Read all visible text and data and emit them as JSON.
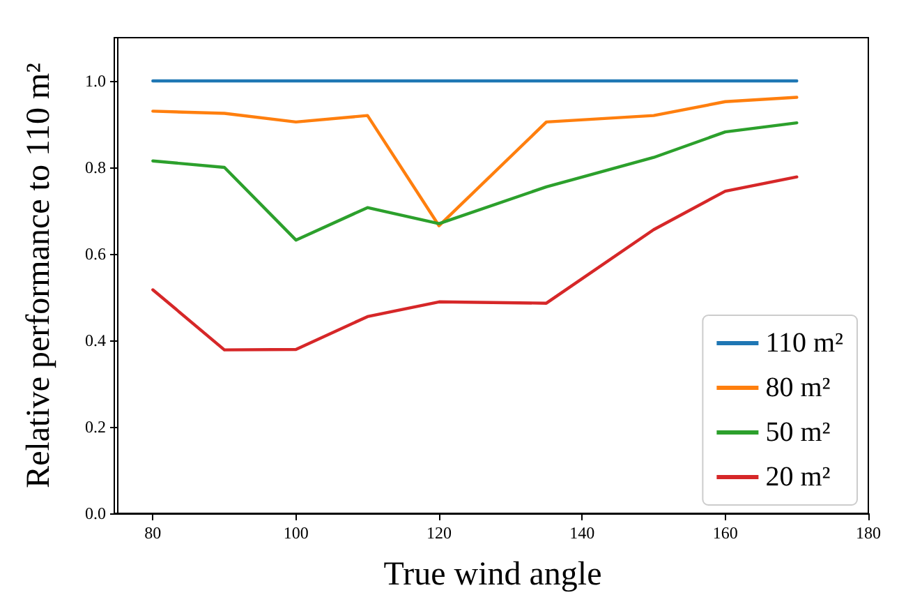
{
  "chart_data": {
    "type": "line",
    "xlabel": "True wind angle",
    "ylabel": "Relative performance to 110 m²",
    "x": [
      80,
      90,
      100,
      110,
      120,
      135,
      150,
      160,
      170
    ],
    "series": [
      {
        "name": "110 m²",
        "color": "#1f77b4",
        "values": [
          1.0,
          1.0,
          1.0,
          1.0,
          1.0,
          1.0,
          1.0,
          1.0,
          1.0
        ]
      },
      {
        "name": "80 m²",
        "color": "#ff7f0e",
        "values": [
          0.93,
          0.925,
          0.905,
          0.92,
          0.665,
          0.905,
          0.92,
          0.952,
          0.962
        ]
      },
      {
        "name": "50 m²",
        "color": "#2ca02c",
        "values": [
          0.815,
          0.8,
          0.632,
          0.707,
          0.67,
          0.755,
          0.823,
          0.882,
          0.903
        ]
      },
      {
        "name": "20 m²",
        "color": "#d62728",
        "values": [
          0.517,
          0.378,
          0.379,
          0.455,
          0.489,
          0.486,
          0.656,
          0.745,
          0.778
        ]
      }
    ],
    "xlim": [
      75,
      180
    ],
    "xticks": [
      80,
      100,
      120,
      140,
      160,
      180
    ],
    "ylim": [
      0,
      1.1
    ],
    "yticks": [
      {
        "value": 0,
        "label": "0.0"
      },
      {
        "value": 0.2,
        "label": "0.2"
      },
      {
        "value": 0.4,
        "label": "0.4"
      },
      {
        "value": 0.6,
        "label": "0.6"
      },
      {
        "value": 0.8,
        "label": "0.8"
      },
      {
        "value": 1.0,
        "label": "1.0"
      }
    ],
    "grid": false,
    "legend": "bottom right",
    "marker": "none",
    "line_style": "solid"
  }
}
